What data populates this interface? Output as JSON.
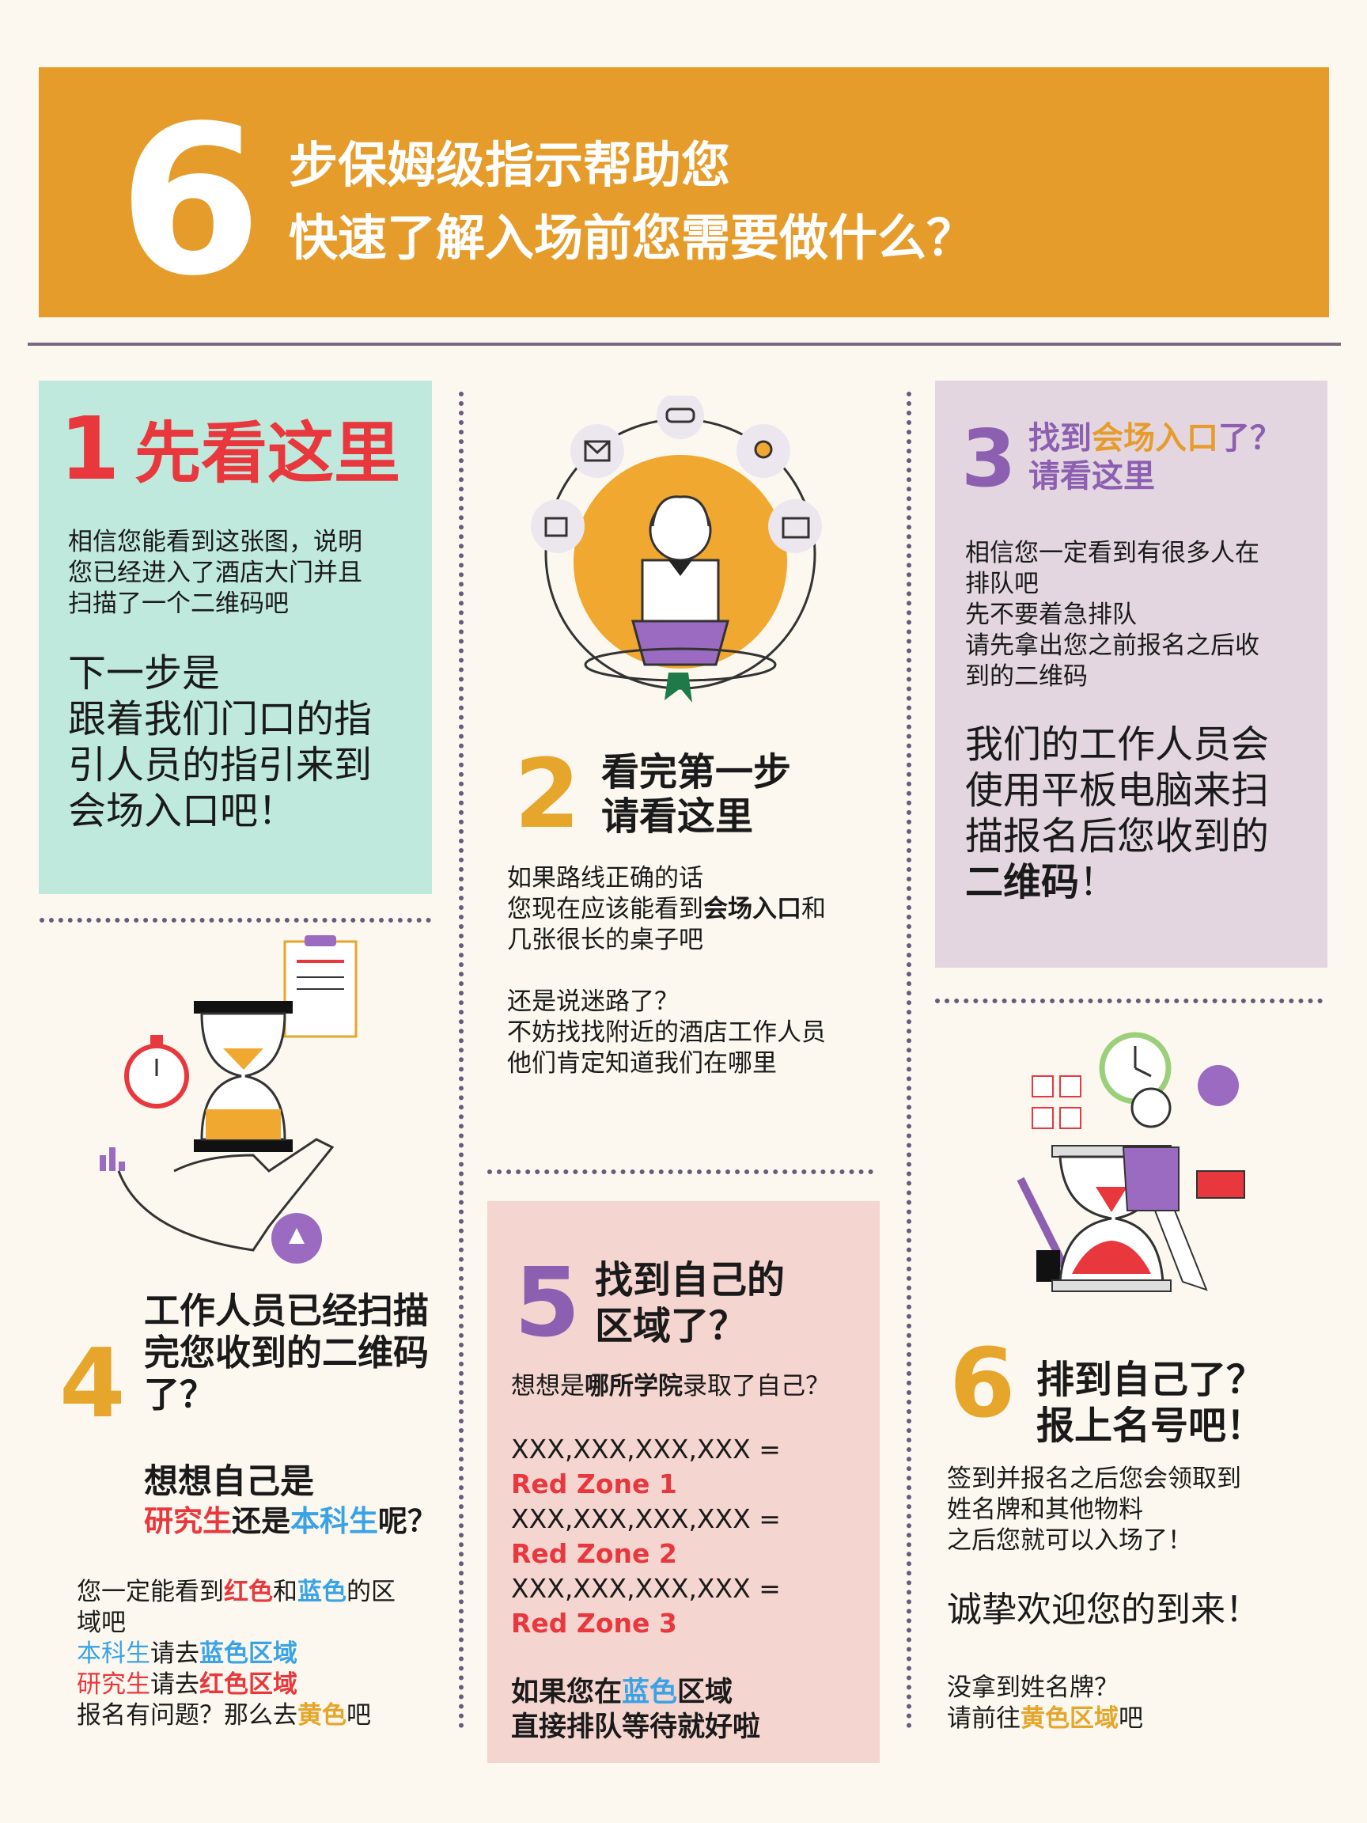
{
  "header": {
    "big_number": "6",
    "line1": "步保姆级指示帮助您",
    "line2": "快速了解入场前您需要做什么？"
  },
  "step1": {
    "num": "1",
    "title": "先看这里",
    "p1": [
      "相信您能看到这张图，说明",
      "您已经进入了酒店大门并且",
      "扫描了一个二维码吧"
    ],
    "p2": [
      "下一步是",
      "跟着我们门口的指",
      "引人员的指引来到",
      "会场入口吧！"
    ]
  },
  "step2": {
    "num": "2",
    "title1": "看完第一步",
    "title2": "请看这里",
    "l1": "如果路线正确的话",
    "l2a": "您现在应该能看到",
    "l2b": "会场入口",
    "l2c": "和",
    "l3": "几张很长的桌子吧",
    "l4": "还是说迷路了？",
    "l5": "不妨找找附近的酒店工作人员",
    "l6": "他们肯定知道我们在哪里"
  },
  "step3": {
    "num": "3",
    "t1a": "找到",
    "t1b": "会场入口",
    "t1c": "了？",
    "t2": "请看这里",
    "p1": [
      "相信您一定看到有很多人在",
      "排队吧",
      "先不要着急排队",
      "请先拿出您之前报名之后收",
      "到的二维码"
    ],
    "p2": [
      "我们的工作人员会",
      "使用平板电脑来扫",
      "描报名后您收到的"
    ],
    "p2b": "二维码",
    "p2c": "！"
  },
  "step4": {
    "num": "4",
    "title": [
      "工作人员已经扫描",
      "完您收到的二维码",
      "了？"
    ],
    "q1": "想想自己是",
    "q2a": "研究生",
    "q2b": "还是",
    "q2c": "本科生",
    "q2d": "呢？",
    "l1a": "您一定能看到",
    "l1b": "红色",
    "l1c": "和",
    "l1d": "蓝色",
    "l1e": "的区",
    "l2": "域吧",
    "l3a": "本科生",
    "l3b": "请去",
    "l3c": "蓝色区域",
    "l4a": "研究生",
    "l4b": "请去",
    "l4c": "红色区域",
    "l5a": "报名有问题？那么去",
    "l5b": "黄色",
    "l5c": "吧"
  },
  "step5": {
    "num": "5",
    "title1": "找到自己的",
    "title2": "区域了？",
    "q_a": "想想是",
    "q_b": "哪所学院",
    "q_c": "录取了自己？",
    "rows": [
      {
        "code": "XXX,XXX,XXX,XXX =",
        "zone": "Red Zone 1"
      },
      {
        "code": "XXX,XXX,XXX,XXX =",
        "zone": "Red Zone 2"
      },
      {
        "code": "XXX,XXX,XXX,XXX =",
        "zone": "Red Zone 3"
      }
    ],
    "f1a": "如果您在",
    "f1b": "蓝色",
    "f1c": "区域",
    "f2": "直接排队等待就好啦"
  },
  "step6": {
    "num": "6",
    "title1": "排到自己了？",
    "title2": "报上名号吧！",
    "p1": [
      "签到并报名之后您会领取到",
      "姓名牌和其他物料",
      "之后您就可以入场了！"
    ],
    "p2": "诚挚欢迎您的到来！",
    "p3": "没拿到姓名牌？",
    "p4a": "请前往",
    "p4b": "黄色区域",
    "p4c": "吧"
  },
  "colors": {
    "orange": "#e69c2b",
    "mint": "#bfe9dc",
    "lavender": "#e3d6e0",
    "pink": "#f4d5d0",
    "red": "#e8373d",
    "blue": "#3aa3e6",
    "purple": "#8c5fb0"
  }
}
